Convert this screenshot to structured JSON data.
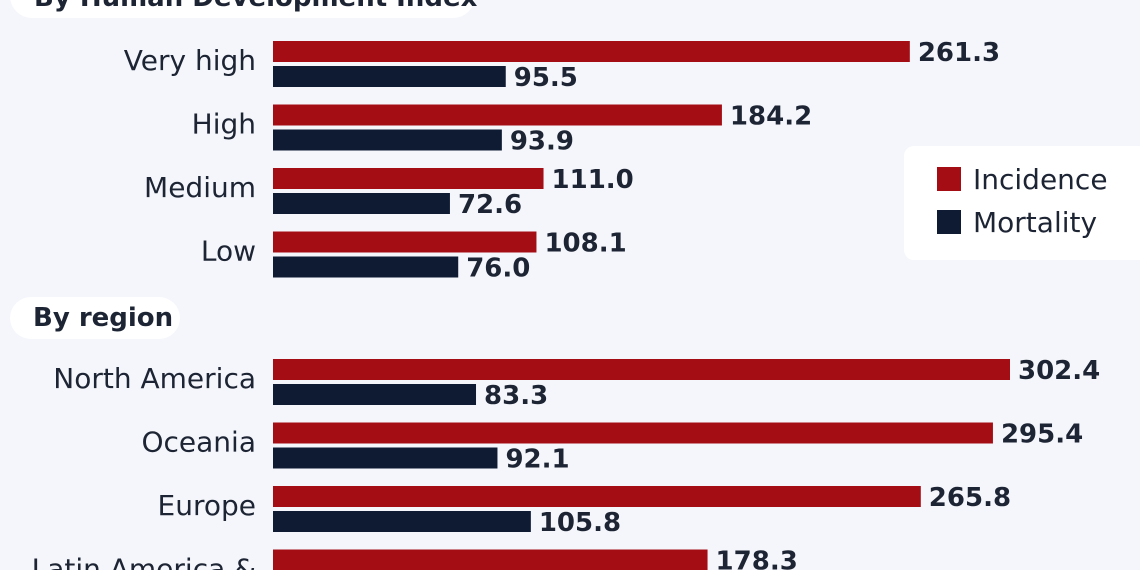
{
  "sections": [
    {
      "title": "By Human Development Index"
    },
    {
      "title": "By region"
    }
  ],
  "legend": [
    {
      "label": "Incidence",
      "color": "#a50d15"
    },
    {
      "label": "Mortality",
      "color": "#0e1b33"
    }
  ],
  "chart_data": {
    "type": "bar",
    "orientation": "horizontal",
    "series": [
      {
        "name": "Incidence",
        "color": "#a50d15"
      },
      {
        "name": "Mortality",
        "color": "#0e1b33"
      }
    ],
    "groups": [
      {
        "title": "By Human Development Index",
        "categories": [
          "Very high",
          "High",
          "Medium",
          "Low"
        ],
        "incidence": [
          261.3,
          184.2,
          111.0,
          108.1
        ],
        "mortality": [
          95.5,
          93.9,
          72.6,
          76.0
        ],
        "incidence_labels": [
          "261.3",
          "184.2",
          "111.0",
          "108.1"
        ],
        "mortality_labels": [
          "95.5",
          "93.9",
          "72.6",
          "76.0"
        ]
      },
      {
        "title": "By region",
        "categories": [
          "North America",
          "Oceania",
          "Europe",
          "Latin America &"
        ],
        "incidence": [
          302.4,
          295.4,
          265.8,
          178.3
        ],
        "mortality": [
          83.3,
          92.1,
          105.8,
          null
        ],
        "incidence_labels": [
          "302.4",
          "295.4",
          "265.8",
          "178.3"
        ],
        "mortality_labels": [
          "83.3",
          "92.1",
          "105.8",
          ""
        ]
      }
    ],
    "xlim": [
      0,
      302.4
    ],
    "legend_position": "right"
  }
}
